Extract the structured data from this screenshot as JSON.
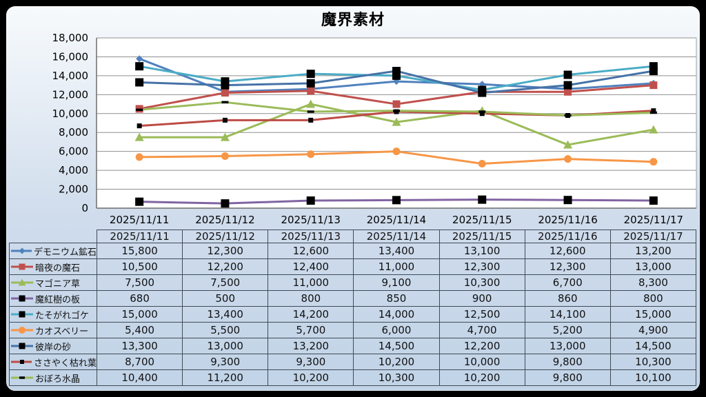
{
  "title": "魔界素材",
  "style": {
    "grid_color": "#8F8F8F",
    "axis_color": "#6D6D6D",
    "plot_bg": "#FFFFFF",
    "table_border_color": "#3F4A55",
    "text_color": "#000000"
  },
  "chart_data": {
    "type": "line",
    "title": "魔界素材",
    "categories": [
      "2025/11/11",
      "2025/11/12",
      "2025/11/13",
      "2025/11/14",
      "2025/11/15",
      "2025/11/16",
      "2025/11/17"
    ],
    "series": [
      {
        "name": "デモニウム鉱石",
        "color": "#4F81BD",
        "marker": "diamond",
        "marker_color": "#4F81BD",
        "values": [
          15800,
          12300,
          12600,
          13400,
          13100,
          12600,
          13200
        ]
      },
      {
        "name": "暗夜の魔石",
        "color": "#C0504D",
        "marker": "square",
        "marker_color": "#C0504D",
        "values": [
          10500,
          12200,
          12400,
          11000,
          12300,
          12300,
          13000
        ]
      },
      {
        "name": "マゴニア草",
        "color": "#9BBB59",
        "marker": "triangle",
        "marker_color": "#9BBB59",
        "values": [
          7500,
          7500,
          11000,
          9100,
          10300,
          6700,
          8300
        ]
      },
      {
        "name": "魔紅樹の板",
        "color": "#8064A2",
        "marker": "square",
        "marker_color": "#000000",
        "values": [
          680,
          500,
          800,
          850,
          900,
          860,
          800
        ]
      },
      {
        "name": "たそがれゴケ",
        "color": "#4BACC6",
        "marker": "square",
        "marker_color": "#000000",
        "values": [
          15000,
          13400,
          14200,
          14000,
          12500,
          14100,
          15000
        ]
      },
      {
        "name": "カオスベリー",
        "color": "#F79646",
        "marker": "circle",
        "marker_color": "#F79646",
        "values": [
          5400,
          5500,
          5700,
          6000,
          4700,
          5200,
          4900
        ]
      },
      {
        "name": "彼岸の砂",
        "color": "#4572A7",
        "marker": "square",
        "marker_color": "#000000",
        "values": [
          13300,
          13000,
          13200,
          14500,
          12200,
          13000,
          14500
        ]
      },
      {
        "name": "ささやく枯れ葉",
        "color": "#BC4B44",
        "marker": "small-square",
        "marker_color": "#000000",
        "values": [
          8700,
          9300,
          9300,
          10200,
          10000,
          9800,
          10300
        ]
      },
      {
        "name": "おぼろ水晶",
        "color": "#9BBB59",
        "marker": "dash",
        "marker_color": "#000000",
        "values": [
          10400,
          11200,
          10200,
          10300,
          10200,
          9800,
          10100
        ]
      }
    ],
    "ylim": [
      0,
      18000
    ],
    "ytick_step": 2000,
    "grid": true,
    "legend_position": "data-table-left-column"
  }
}
